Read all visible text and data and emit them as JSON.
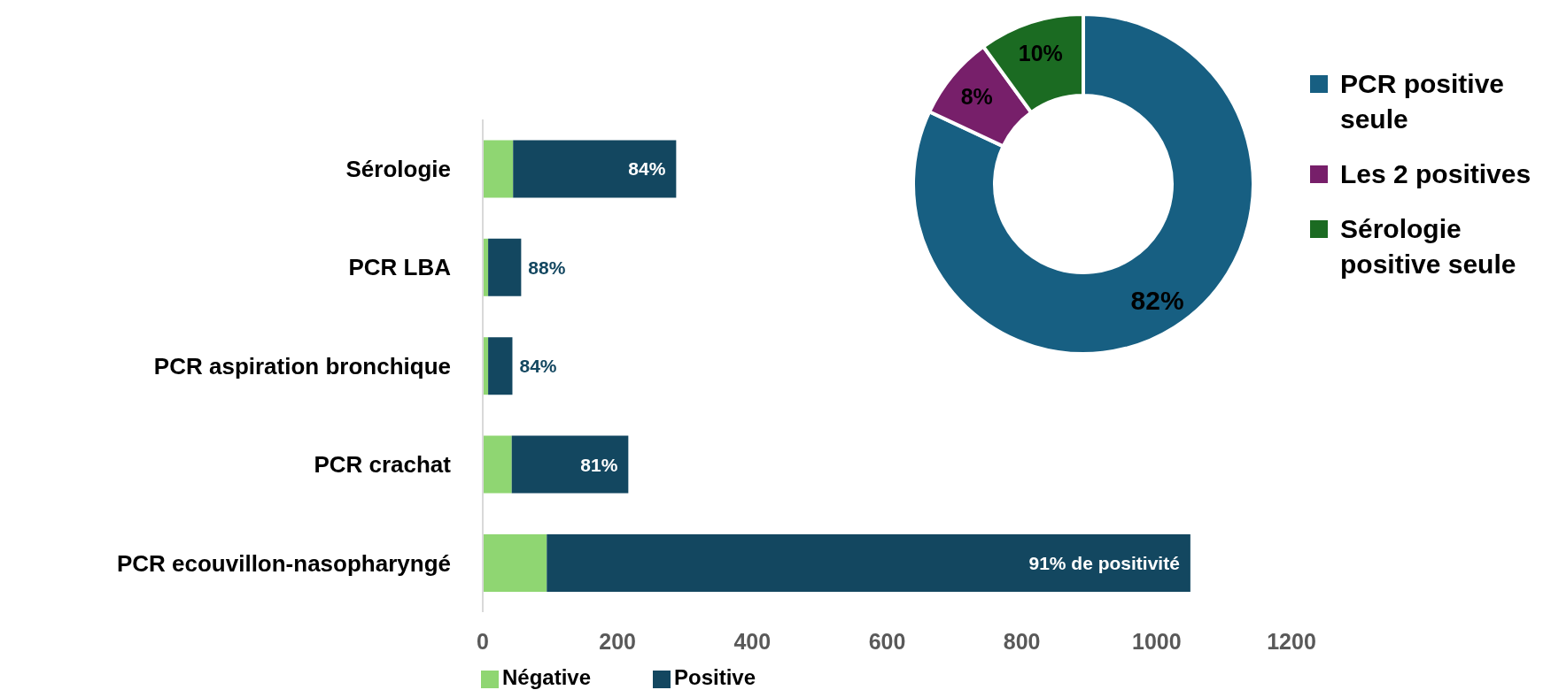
{
  "chart_data": [
    {
      "type": "bar",
      "orientation": "horizontal",
      "stacked": true,
      "categories": [
        "Sérologie",
        "PCR LBA",
        "PCR aspiration bronchique",
        "PCR crachat",
        "PCR ecouvillon-nasopharyngé"
      ],
      "series": [
        {
          "name": "Négative",
          "color": "#8fd672",
          "values": [
            45,
            8,
            8,
            43,
            95
          ]
        },
        {
          "name": "Positive",
          "color": "#134760",
          "values": [
            242,
            49,
            36,
            173,
            955
          ]
        }
      ],
      "annotations": [
        {
          "text": "84%",
          "x": 287,
          "y": "Sérologie"
        },
        {
          "text": "88%",
          "x": 57,
          "y": "PCR LBA"
        },
        {
          "text": "84%",
          "x": 44,
          "y": "PCR aspiration bronchique"
        },
        {
          "text": "81%",
          "x": 216,
          "y": "PCR crachat"
        },
        {
          "text": "91% de positivité",
          "x": 1050,
          "y": "PCR ecouvillon-nasopharyngé"
        }
      ],
      "xlim": [
        0,
        1200
      ],
      "xticks": [
        0,
        200,
        400,
        600,
        800,
        1000,
        1200
      ],
      "grid": false,
      "legend": "bottom"
    },
    {
      "type": "donut",
      "categories": [
        "PCR positive seule",
        "Les 2 positives",
        "Sérologie positive seule"
      ],
      "values": [
        82,
        8,
        10
      ],
      "value_labels": [
        "82%",
        "8%",
        "10%"
      ],
      "colors": [
        "#175f82",
        "#771f6a",
        "#1b6b22"
      ],
      "legend": "right"
    }
  ]
}
